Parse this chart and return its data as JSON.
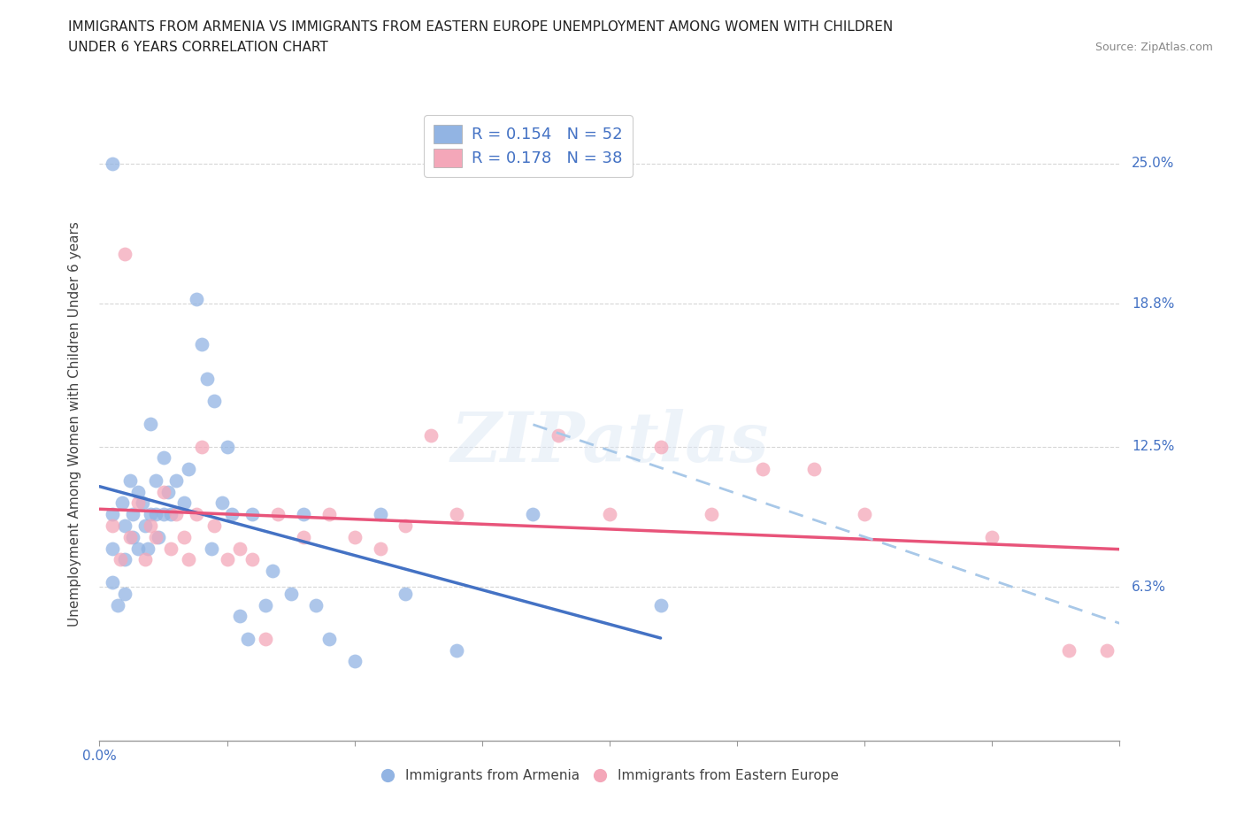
{
  "title_line1": "IMMIGRANTS FROM ARMENIA VS IMMIGRANTS FROM EASTERN EUROPE UNEMPLOYMENT AMONG WOMEN WITH CHILDREN",
  "title_line2": "UNDER 6 YEARS CORRELATION CHART",
  "source": "Source: ZipAtlas.com",
  "ylabel": "Unemployment Among Women with Children Under 6 years",
  "xlim": [
    0.0,
    0.4
  ],
  "ylim": [
    -0.005,
    0.275
  ],
  "xtick_positions": [
    0.0,
    0.05,
    0.1,
    0.15,
    0.2,
    0.25,
    0.3,
    0.35,
    0.4
  ],
  "xtick_labels_map": {
    "0.0": "0.0%"
  },
  "ytick_values": [
    0.063,
    0.125,
    0.188,
    0.25
  ],
  "ytick_labels": [
    "6.3%",
    "12.5%",
    "18.8%",
    "25.0%"
  ],
  "armenia_color": "#92b4e3",
  "eastern_color": "#f4a7b9",
  "armenia_line_color": "#4472c4",
  "eastern_line_color": "#e8547a",
  "eastern_line2_color": "#a8c8e8",
  "R_armenia": "0.154",
  "N_armenia": "52",
  "R_eastern": "0.178",
  "N_eastern": "38",
  "legend_label_armenia": "Immigrants from Armenia",
  "legend_label_eastern": "Immigrants from Eastern Europe",
  "watermark": "ZIPatlas",
  "label_color": "#4472c4",
  "armenia_x": [
    0.005,
    0.005,
    0.005,
    0.005,
    0.007,
    0.009,
    0.01,
    0.01,
    0.01,
    0.012,
    0.013,
    0.013,
    0.015,
    0.015,
    0.017,
    0.018,
    0.019,
    0.02,
    0.02,
    0.022,
    0.022,
    0.023,
    0.025,
    0.025,
    0.027,
    0.028,
    0.03,
    0.033,
    0.035,
    0.038,
    0.04,
    0.042,
    0.044,
    0.045,
    0.048,
    0.05,
    0.052,
    0.055,
    0.058,
    0.06,
    0.065,
    0.068,
    0.075,
    0.08,
    0.085,
    0.09,
    0.1,
    0.11,
    0.12,
    0.14,
    0.17,
    0.22
  ],
  "armenia_y": [
    0.25,
    0.095,
    0.08,
    0.065,
    0.055,
    0.1,
    0.09,
    0.075,
    0.06,
    0.11,
    0.095,
    0.085,
    0.105,
    0.08,
    0.1,
    0.09,
    0.08,
    0.135,
    0.095,
    0.11,
    0.095,
    0.085,
    0.12,
    0.095,
    0.105,
    0.095,
    0.11,
    0.1,
    0.115,
    0.19,
    0.17,
    0.155,
    0.08,
    0.145,
    0.1,
    0.125,
    0.095,
    0.05,
    0.04,
    0.095,
    0.055,
    0.07,
    0.06,
    0.095,
    0.055,
    0.04,
    0.03,
    0.095,
    0.06,
    0.035,
    0.095,
    0.055
  ],
  "eastern_x": [
    0.005,
    0.008,
    0.01,
    0.012,
    0.015,
    0.018,
    0.02,
    0.022,
    0.025,
    0.028,
    0.03,
    0.033,
    0.035,
    0.038,
    0.04,
    0.045,
    0.05,
    0.055,
    0.06,
    0.065,
    0.07,
    0.08,
    0.09,
    0.1,
    0.11,
    0.12,
    0.13,
    0.14,
    0.18,
    0.2,
    0.22,
    0.24,
    0.26,
    0.28,
    0.3,
    0.35,
    0.38,
    0.395
  ],
  "eastern_y": [
    0.09,
    0.075,
    0.21,
    0.085,
    0.1,
    0.075,
    0.09,
    0.085,
    0.105,
    0.08,
    0.095,
    0.085,
    0.075,
    0.095,
    0.125,
    0.09,
    0.075,
    0.08,
    0.075,
    0.04,
    0.095,
    0.085,
    0.095,
    0.085,
    0.08,
    0.09,
    0.13,
    0.095,
    0.13,
    0.095,
    0.125,
    0.095,
    0.115,
    0.115,
    0.095,
    0.085,
    0.035,
    0.035
  ]
}
